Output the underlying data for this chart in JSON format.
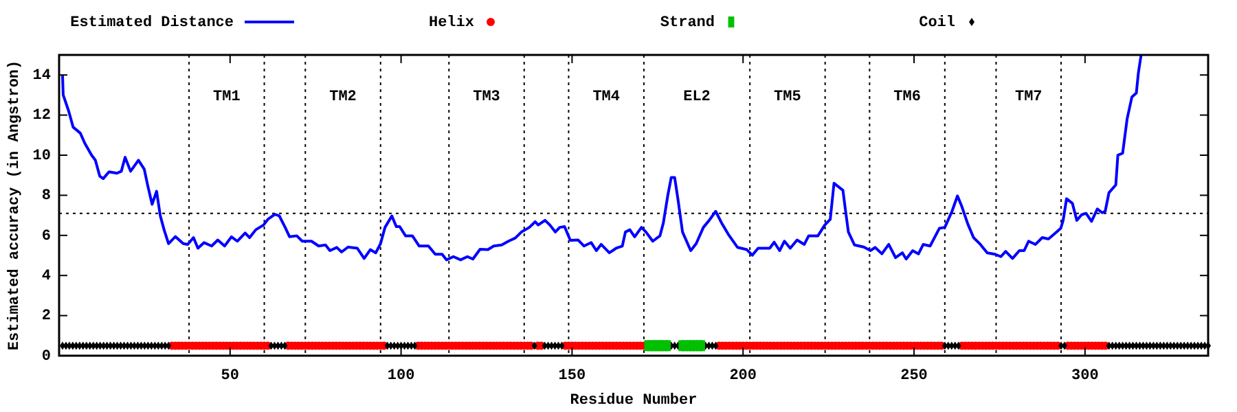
{
  "chart_data": {
    "type": "line",
    "xlabel": "Residue Number",
    "ylabel": "Estimated accuracy (in Angstron)",
    "xlim": [
      0,
      336
    ],
    "xticks": [
      50,
      100,
      150,
      200,
      250,
      300
    ],
    "ylim": [
      0,
      15
    ],
    "yticks": [
      0,
      2,
      4,
      6,
      8,
      10,
      12,
      14
    ],
    "legend": "top",
    "grid": false,
    "series": [
      {
        "name": "Estimated Distance",
        "type": "line",
        "color": "#0000ff",
        "marker": "none",
        "x": [
          1,
          1.2,
          2.8,
          4.1,
          6.2,
          7.5,
          9.5,
          10.6,
          11.9,
          12.9,
          14.6,
          16.9,
          18.2,
          19.3,
          20.9,
          23.2,
          24.9,
          25.9,
          27.2,
          28.5,
          29.6,
          30.7,
          32,
          34,
          36.3,
          37.6,
          39.3,
          40.6,
          42.4,
          44.6,
          46.4,
          48.4,
          50.4,
          52.1,
          54.4,
          55.7,
          57.5,
          59.8,
          61.1,
          63.1,
          64.4,
          66.1,
          67.4,
          69.5,
          71.1,
          73.8,
          75.9,
          77.9,
          79.2,
          81.2,
          82.6,
          84.5,
          87.2,
          89.2,
          91,
          92.6,
          94,
          95.3,
          97.3,
          98.6,
          99.6,
          101.3,
          103.3,
          105.3,
          108,
          110,
          112,
          113.3,
          115.3,
          117.4,
          119.4,
          121,
          123.1,
          125.4,
          127.1,
          129.4,
          131.4,
          133.4,
          135.2,
          137.5,
          139.2,
          140.1,
          142.1,
          143.5,
          145.1,
          146.4,
          147.8,
          149.5,
          151.8,
          153.5,
          155.6,
          157.1,
          158.5,
          160.9,
          162.9,
          164.7,
          165.6,
          166.9,
          168.3,
          170.3,
          171.6,
          173.6,
          175.7,
          176.7,
          178,
          179,
          180,
          181,
          182.3,
          184.7,
          186.3,
          188.4,
          190.1,
          192,
          193.7,
          195.7,
          198.4,
          201.1,
          202.7,
          204.4,
          207.8,
          209.1,
          210.7,
          212.1,
          213.8,
          215.8,
          217.9,
          219.2,
          221.9,
          223.9,
          225.5,
          226.6,
          229.2,
          229.9,
          230.8,
          232.6,
          235.3,
          237.3,
          238.6,
          240.6,
          242.6,
          244.6,
          246.6,
          247.7,
          249.6,
          251.3,
          252.7,
          254.7,
          257.4,
          259,
          261.1,
          262.7,
          264,
          265.7,
          267.4,
          269.4,
          271.4,
          273.7,
          275.4,
          276.8,
          278.8,
          280.8,
          282.2,
          283.5,
          285.5,
          287.5,
          289.3,
          290.9,
          292.9,
          293.6,
          294.6,
          296.3,
          297.6,
          299,
          300.3,
          301.9,
          303.6,
          305,
          305.9,
          307,
          309,
          309.6,
          311,
          312.3,
          313.7,
          315,
          315.6,
          316.4
        ],
        "values": [
          14,
          13,
          12.2,
          11.4,
          11.1,
          10.6,
          10,
          9.75,
          8.95,
          8.83,
          9.17,
          9.1,
          9.2,
          9.9,
          9.2,
          9.75,
          9.3,
          8.5,
          7.55,
          8.2,
          6.97,
          6.28,
          5.59,
          5.94,
          5.59,
          5.55,
          5.89,
          5.36,
          5.64,
          5.47,
          5.77,
          5.47,
          5.93,
          5.71,
          6.12,
          5.89,
          6.28,
          6.52,
          6.81,
          7.05,
          6.97,
          6.4,
          5.93,
          5.98,
          5.71,
          5.71,
          5.47,
          5.52,
          5.24,
          5.4,
          5.17,
          5.42,
          5.36,
          4.85,
          5.29,
          5.13,
          5.59,
          6.4,
          6.97,
          6.44,
          6.44,
          5.98,
          5.98,
          5.47,
          5.47,
          5.06,
          5.06,
          4.78,
          4.94,
          4.78,
          4.94,
          4.82,
          5.31,
          5.29,
          5.47,
          5.52,
          5.71,
          5.87,
          6.17,
          6.4,
          6.68,
          6.52,
          6.75,
          6.52,
          6.17,
          6.4,
          6.44,
          5.75,
          5.77,
          5.47,
          5.64,
          5.24,
          5.55,
          5.13,
          5.36,
          5.47,
          6.17,
          6.28,
          5.93,
          6.4,
          6.17,
          5.71,
          5.98,
          6.63,
          8,
          8.89,
          8.89,
          7.76,
          6.17,
          5.24,
          5.59,
          6.4,
          6.75,
          7.2,
          6.63,
          6.05,
          5.4,
          5.29,
          5.01,
          5.36,
          5.36,
          5.66,
          5.24,
          5.71,
          5.36,
          5.77,
          5.55,
          5.98,
          5.98,
          6.52,
          6.8,
          8.6,
          8.25,
          7.32,
          6.17,
          5.52,
          5.42,
          5.24,
          5.4,
          5.08,
          5.55,
          4.89,
          5.13,
          4.82,
          5.24,
          5.08,
          5.55,
          5.47,
          6.35,
          6.4,
          7.2,
          7.97,
          7.43,
          6.58,
          5.89,
          5.55,
          5.13,
          5.06,
          4.94,
          5.2,
          4.85,
          5.24,
          5.24,
          5.71,
          5.55,
          5.89,
          5.82,
          6.05,
          6.35,
          6.75,
          7.83,
          7.6,
          6.75,
          7.03,
          7.1,
          6.7,
          7.32,
          7.13,
          7.2,
          8.13,
          8.52,
          10,
          10.1,
          11.8,
          12.9,
          13.1,
          14.1,
          15
        ]
      },
      {
        "name": "Helix",
        "type": "scatter",
        "color": "#ff0000",
        "marker": "circle",
        "x": [
          33,
          34,
          35,
          36,
          37,
          38,
          39,
          40,
          41,
          42,
          43,
          44,
          45,
          46,
          47,
          48,
          49,
          50,
          51,
          52,
          53,
          54,
          55,
          56,
          57,
          58,
          59,
          60,
          61,
          67,
          68,
          69,
          70,
          71,
          72,
          73,
          74,
          75,
          76,
          77,
          78,
          79,
          80,
          81,
          82,
          83,
          84,
          85,
          86,
          87,
          88,
          89,
          90,
          91,
          92,
          93,
          94,
          95,
          105,
          106,
          107,
          108,
          109,
          110,
          111,
          112,
          113,
          114,
          115,
          116,
          117,
          118,
          119,
          120,
          121,
          122,
          123,
          124,
          125,
          126,
          127,
          128,
          129,
          130,
          131,
          132,
          133,
          134,
          135,
          136,
          137,
          138,
          140,
          141,
          148,
          149,
          150,
          151,
          152,
          153,
          154,
          155,
          156,
          157,
          158,
          159,
          160,
          161,
          162,
          163,
          164,
          165,
          166,
          167,
          168,
          169,
          170,
          171,
          193,
          194,
          195,
          196,
          197,
          198,
          199,
          200,
          201,
          202,
          203,
          204,
          205,
          206,
          207,
          208,
          209,
          210,
          211,
          212,
          213,
          214,
          215,
          216,
          217,
          218,
          219,
          220,
          221,
          222,
          223,
          224,
          225,
          226,
          227,
          228,
          229,
          230,
          231,
          232,
          233,
          234,
          235,
          236,
          237,
          238,
          239,
          240,
          241,
          242,
          243,
          244,
          245,
          246,
          247,
          248,
          249,
          250,
          251,
          252,
          253,
          254,
          255,
          256,
          257,
          258,
          264,
          265,
          266,
          267,
          268,
          269,
          270,
          271,
          272,
          273,
          274,
          275,
          276,
          277,
          278,
          279,
          280,
          281,
          282,
          283,
          284,
          285,
          286,
          287,
          288,
          289,
          290,
          291,
          292,
          295,
          296,
          297,
          298,
          299,
          300,
          301,
          302,
          303,
          304,
          305,
          306
        ],
        "values": [
          0.5,
          0.5,
          0.5,
          0.5,
          0.5,
          0.5,
          0.5,
          0.5,
          0.5,
          0.5,
          0.5,
          0.5,
          0.5,
          0.5,
          0.5,
          0.5,
          0.5,
          0.5,
          0.5,
          0.5,
          0.5,
          0.5,
          0.5,
          0.5,
          0.5,
          0.5,
          0.5,
          0.5,
          0.5,
          0.5,
          0.5,
          0.5,
          0.5,
          0.5,
          0.5,
          0.5,
          0.5,
          0.5,
          0.5,
          0.5,
          0.5,
          0.5,
          0.5,
          0.5,
          0.5,
          0.5,
          0.5,
          0.5,
          0.5,
          0.5,
          0.5,
          0.5,
          0.5,
          0.5,
          0.5,
          0.5,
          0.5,
          0.5,
          0.5,
          0.5,
          0.5,
          0.5,
          0.5,
          0.5,
          0.5,
          0.5,
          0.5,
          0.5,
          0.5,
          0.5,
          0.5,
          0.5,
          0.5,
          0.5,
          0.5,
          0.5,
          0.5,
          0.5,
          0.5,
          0.5,
          0.5,
          0.5,
          0.5,
          0.5,
          0.5,
          0.5,
          0.5,
          0.5,
          0.5,
          0.5,
          0.5,
          0.5,
          0.5,
          0.5,
          0.5,
          0.5,
          0.5,
          0.5,
          0.5,
          0.5,
          0.5,
          0.5,
          0.5,
          0.5,
          0.5,
          0.5,
          0.5,
          0.5,
          0.5,
          0.5,
          0.5,
          0.5,
          0.5,
          0.5,
          0.5,
          0.5,
          0.5,
          0.5,
          0.5,
          0.5,
          0.5,
          0.5,
          0.5,
          0.5,
          0.5,
          0.5,
          0.5,
          0.5,
          0.5,
          0.5,
          0.5,
          0.5,
          0.5,
          0.5,
          0.5,
          0.5,
          0.5,
          0.5,
          0.5,
          0.5,
          0.5,
          0.5,
          0.5,
          0.5,
          0.5,
          0.5,
          0.5,
          0.5,
          0.5,
          0.5,
          0.5,
          0.5,
          0.5,
          0.5,
          0.5,
          0.5,
          0.5,
          0.5,
          0.5,
          0.5,
          0.5,
          0.5,
          0.5,
          0.5,
          0.5,
          0.5,
          0.5,
          0.5,
          0.5,
          0.5,
          0.5,
          0.5,
          0.5,
          0.5,
          0.5,
          0.5,
          0.5,
          0.5,
          0.5,
          0.5,
          0.5,
          0.5,
          0.5,
          0.5,
          0.5,
          0.5,
          0.5,
          0.5,
          0.5,
          0.5,
          0.5,
          0.5,
          0.5,
          0.5,
          0.5,
          0.5,
          0.5,
          0.5,
          0.5,
          0.5,
          0.5,
          0.5,
          0.5,
          0.5,
          0.5,
          0.5,
          0.5,
          0.5,
          0.5,
          0.5,
          0.5,
          0.5,
          0.5,
          0.5,
          0.5,
          0.5,
          0.5,
          0.5,
          0.5,
          0.5,
          0.5,
          0.5,
          0.5,
          0.5,
          0.5
        ]
      },
      {
        "name": "Strand",
        "type": "scatter",
        "color": "#00c000",
        "marker": "square",
        "x": [
          172,
          173,
          174,
          175,
          176,
          177,
          178,
          182,
          183,
          184,
          185,
          186,
          187,
          188
        ],
        "values": [
          0.5,
          0.5,
          0.5,
          0.5,
          0.5,
          0.5,
          0.5,
          0.5,
          0.5,
          0.5,
          0.5,
          0.5,
          0.5,
          0.5
        ]
      },
      {
        "name": "Coil",
        "type": "scatter",
        "color": "#000000",
        "marker": "diamond",
        "x": [
          1,
          2,
          3,
          4,
          5,
          6,
          7,
          8,
          9,
          10,
          11,
          12,
          13,
          14,
          15,
          16,
          17,
          18,
          19,
          20,
          21,
          22,
          23,
          24,
          25,
          26,
          27,
          28,
          29,
          30,
          31,
          32,
          62,
          63,
          64,
          65,
          66,
          96,
          97,
          98,
          99,
          100,
          101,
          102,
          103,
          104,
          139,
          142,
          143,
          144,
          145,
          146,
          147,
          179,
          180,
          181,
          189,
          190,
          191,
          192,
          259,
          260,
          261,
          262,
          263,
          293,
          294,
          307,
          308,
          309,
          310,
          311,
          312,
          313,
          314,
          315,
          316,
          317,
          318,
          319,
          320,
          321,
          322,
          323,
          324,
          325,
          326,
          327,
          328,
          329,
          330,
          331,
          332,
          333,
          334,
          335,
          336
        ],
        "values": [
          0.5,
          0.5,
          0.5,
          0.5,
          0.5,
          0.5,
          0.5,
          0.5,
          0.5,
          0.5,
          0.5,
          0.5,
          0.5,
          0.5,
          0.5,
          0.5,
          0.5,
          0.5,
          0.5,
          0.5,
          0.5,
          0.5,
          0.5,
          0.5,
          0.5,
          0.5,
          0.5,
          0.5,
          0.5,
          0.5,
          0.5,
          0.5,
          0.5,
          0.5,
          0.5,
          0.5,
          0.5,
          0.5,
          0.5,
          0.5,
          0.5,
          0.5,
          0.5,
          0.5,
          0.5,
          0.5,
          0.5,
          0.5,
          0.5,
          0.5,
          0.5,
          0.5,
          0.5,
          0.5,
          0.5,
          0.5,
          0.5,
          0.5,
          0.5,
          0.5,
          0.5,
          0.5,
          0.5,
          0.5,
          0.5,
          0.5,
          0.5,
          0.5,
          0.5,
          0.5,
          0.5,
          0.5,
          0.5,
          0.5,
          0.5,
          0.5,
          0.5,
          0.5,
          0.5,
          0.5,
          0.5,
          0.5,
          0.5,
          0.5,
          0.5,
          0.5,
          0.5,
          0.5,
          0.5,
          0.5,
          0.5,
          0.5,
          0.5,
          0.5,
          0.5,
          0.5,
          0.5
        ]
      }
    ],
    "ref_lines": [
      {
        "axis": "y",
        "value": 7.1,
        "line_style": "dotted"
      },
      {
        "axis": "x",
        "value": 38,
        "line_style": "dotted",
        "label": "TM1"
      },
      {
        "axis": "x",
        "value": 60,
        "line_style": "dotted"
      },
      {
        "axis": "x",
        "value": 72,
        "line_style": "dotted",
        "label": "TM2"
      },
      {
        "axis": "x",
        "value": 94,
        "line_style": "dotted"
      },
      {
        "axis": "x",
        "value": 114,
        "line_style": "dotted",
        "label": "TM3"
      },
      {
        "axis": "x",
        "value": 136,
        "line_style": "dotted"
      },
      {
        "axis": "x",
        "value": 149,
        "line_style": "dotted",
        "label": "TM4"
      },
      {
        "axis": "x",
        "value": 171,
        "line_style": "dotted",
        "label": "EL2"
      },
      {
        "axis": "x",
        "value": 202,
        "line_style": "dotted",
        "label": "TM5"
      },
      {
        "axis": "x",
        "value": 224,
        "line_style": "dotted"
      },
      {
        "axis": "x",
        "value": 237,
        "line_style": "dotted",
        "label": "TM6"
      },
      {
        "axis": "x",
        "value": 259,
        "line_style": "dotted"
      },
      {
        "axis": "x",
        "value": 274,
        "line_style": "dotted",
        "label": "TM7"
      },
      {
        "axis": "x",
        "value": 293,
        "line_style": "dotted"
      }
    ]
  }
}
